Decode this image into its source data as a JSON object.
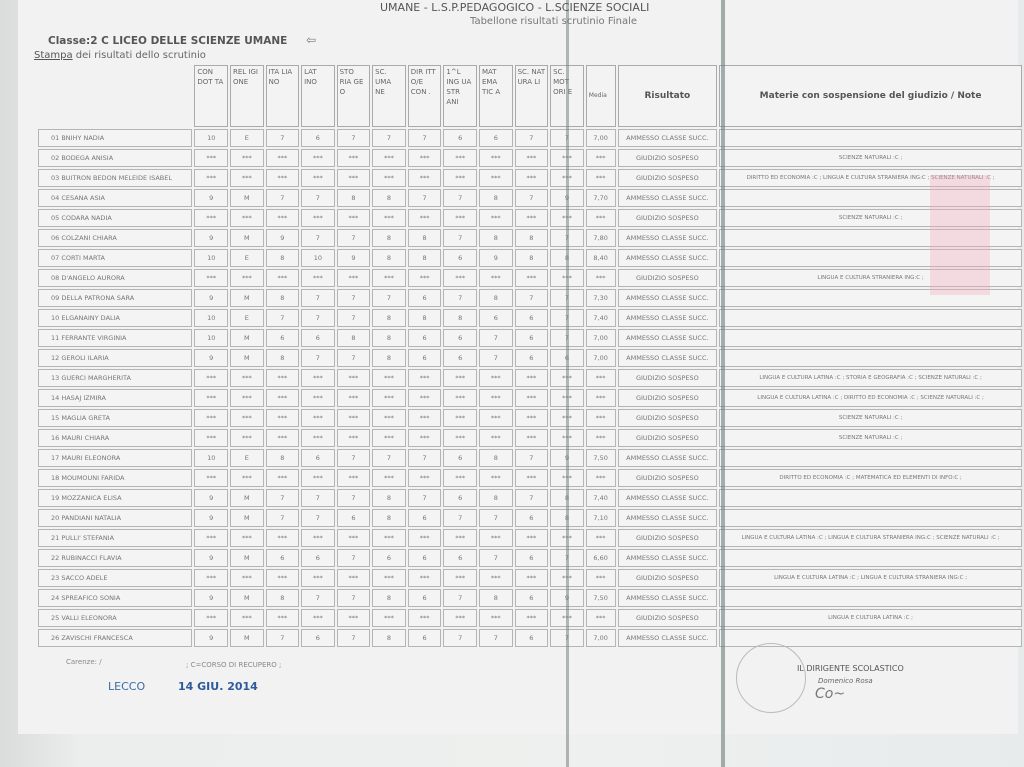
{
  "header": {
    "school_line": "UMANE - L.S.P.PEDAGOGICO - L.SCIENZE SOCIALI",
    "subtitle": "Tabellone risultati scrutinio Finale",
    "classe": "Classe:2 C LICEO DELLE SCIENZE UMANE",
    "back_icon": "⇦",
    "stampa_link": "Stampa",
    "stampa_rest": " dei risultati dello scrutinio"
  },
  "columns": [
    "CON DOT TA",
    "REL IGI ONE",
    "ITA LIA NO",
    "LAT INO",
    "STO RIA GE O",
    "SC. UMA NE",
    "DIR ITT O/E CON .",
    "1^L ING UA STR ANI",
    "MAT EMA TIC A",
    "SC. NAT URA LI",
    "SC. MOT ORI E",
    "Media",
    "Risultato",
    "Materie con sospensione del giudizio / Note"
  ],
  "students": [
    {
      "name": "01 BNIHY NADIA",
      "grades": [
        "10",
        "E",
        "7",
        "6",
        "7",
        "7",
        "7",
        "6",
        "6",
        "7",
        "7"
      ],
      "media": "7,00",
      "result": "AMMESSO CLASSE SUCC.",
      "note": ""
    },
    {
      "name": "02 BODEGA ANISIA",
      "grades": [
        "***",
        "***",
        "***",
        "***",
        "***",
        "***",
        "***",
        "***",
        "***",
        "***",
        "***"
      ],
      "media": "***",
      "result": "GIUDIZIO SOSPESO",
      "note": "SCIENZE NATURALI :C ;"
    },
    {
      "name": "03 BUITRON BEDON MELEIDE ISABEL",
      "grades": [
        "***",
        "***",
        "***",
        "***",
        "***",
        "***",
        "***",
        "***",
        "***",
        "***",
        "***"
      ],
      "media": "***",
      "result": "GIUDIZIO SOSPESO",
      "note": "DIRITTO ED ECONOMIA :C ; LINGUA E CULTURA STRANIERA ING:C ; SCIENZE NATURALI :C ;"
    },
    {
      "name": "04 CESANA ASIA",
      "grades": [
        "9",
        "M",
        "7",
        "7",
        "8",
        "8",
        "7",
        "7",
        "8",
        "7",
        "9"
      ],
      "media": "7,70",
      "result": "AMMESSO CLASSE SUCC.",
      "note": ""
    },
    {
      "name": "05 CODARA NADIA",
      "grades": [
        "***",
        "***",
        "***",
        "***",
        "***",
        "***",
        "***",
        "***",
        "***",
        "***",
        "***"
      ],
      "media": "***",
      "result": "GIUDIZIO SOSPESO",
      "note": "SCIENZE NATURALI :C ;"
    },
    {
      "name": "06 COLZANI CHIARA",
      "grades": [
        "9",
        "M",
        "9",
        "7",
        "7",
        "8",
        "8",
        "7",
        "8",
        "8",
        "7"
      ],
      "media": "7,80",
      "result": "AMMESSO CLASSE SUCC.",
      "note": ""
    },
    {
      "name": "07 CORTI MARTA",
      "grades": [
        "10",
        "E",
        "8",
        "10",
        "9",
        "8",
        "8",
        "6",
        "9",
        "8",
        "8"
      ],
      "media": "8,40",
      "result": "AMMESSO CLASSE SUCC.",
      "note": ""
    },
    {
      "name": "08 D'ANGELO AURORA",
      "grades": [
        "***",
        "***",
        "***",
        "***",
        "***",
        "***",
        "***",
        "***",
        "***",
        "***",
        "***"
      ],
      "media": "***",
      "result": "GIUDIZIO SOSPESO",
      "note": "LINGUA E CULTURA STRANIERA ING:C ;"
    },
    {
      "name": "09 DELLA PATRONA SARA",
      "grades": [
        "9",
        "M",
        "8",
        "7",
        "7",
        "7",
        "6",
        "7",
        "8",
        "7",
        "7"
      ],
      "media": "7,30",
      "result": "AMMESSO CLASSE SUCC.",
      "note": ""
    },
    {
      "name": "10 ELGANAINY DALIA",
      "grades": [
        "10",
        "E",
        "7",
        "7",
        "7",
        "8",
        "8",
        "8",
        "6",
        "6",
        "7"
      ],
      "media": "7,40",
      "result": "AMMESSO CLASSE SUCC.",
      "note": ""
    },
    {
      "name": "11 FERRANTE VIRGINIA",
      "grades": [
        "10",
        "M",
        "6",
        "6",
        "8",
        "8",
        "6",
        "6",
        "7",
        "6",
        "7"
      ],
      "media": "7,00",
      "result": "AMMESSO CLASSE SUCC.",
      "note": ""
    },
    {
      "name": "12 GEROLI ILARIA",
      "grades": [
        "9",
        "M",
        "8",
        "7",
        "7",
        "8",
        "6",
        "6",
        "7",
        "6",
        "6"
      ],
      "media": "7,00",
      "result": "AMMESSO CLASSE SUCC.",
      "note": ""
    },
    {
      "name": "13 GUERCI MARGHERITA",
      "grades": [
        "***",
        "***",
        "***",
        "***",
        "***",
        "***",
        "***",
        "***",
        "***",
        "***",
        "***"
      ],
      "media": "***",
      "result": "GIUDIZIO SOSPESO",
      "note": "LINGUA E CULTURA LATINA :C ; STORIA E GEOGRAFIA :C ; SCIENZE NATURALI :C ;"
    },
    {
      "name": "14 HASAJ IZMIRA",
      "grades": [
        "***",
        "***",
        "***",
        "***",
        "***",
        "***",
        "***",
        "***",
        "***",
        "***",
        "***"
      ],
      "media": "***",
      "result": "GIUDIZIO SOSPESO",
      "note": "LINGUA E CULTURA LATINA :C ; DIRITTO ED ECONOMIA :C ; SCIENZE NATURALI :C ;"
    },
    {
      "name": "15 MAGLIA GRETA",
      "grades": [
        "***",
        "***",
        "***",
        "***",
        "***",
        "***",
        "***",
        "***",
        "***",
        "***",
        "***"
      ],
      "media": "***",
      "result": "GIUDIZIO SOSPESO",
      "note": "SCIENZE NATURALI :C ;"
    },
    {
      "name": "16 MAURI CHIARA",
      "grades": [
        "***",
        "***",
        "***",
        "***",
        "***",
        "***",
        "***",
        "***",
        "***",
        "***",
        "***"
      ],
      "media": "***",
      "result": "GIUDIZIO SOSPESO",
      "note": "SCIENZE NATURALI :C ;"
    },
    {
      "name": "17 MAURI ELEONORA",
      "grades": [
        "10",
        "E",
        "8",
        "6",
        "7",
        "7",
        "7",
        "6",
        "8",
        "7",
        "9"
      ],
      "media": "7,50",
      "result": "AMMESSO CLASSE SUCC.",
      "note": ""
    },
    {
      "name": "18 MOUMOUNI FARIDA",
      "grades": [
        "***",
        "***",
        "***",
        "***",
        "***",
        "***",
        "***",
        "***",
        "***",
        "***",
        "***"
      ],
      "media": "***",
      "result": "GIUDIZIO SOSPESO",
      "note": "DIRITTO ED ECONOMIA :C ; MATEMATICA ED ELEMENTI DI INFO:C ;"
    },
    {
      "name": "19 MOZZANICA ELISA",
      "grades": [
        "9",
        "M",
        "7",
        "7",
        "7",
        "8",
        "7",
        "6",
        "8",
        "7",
        "8"
      ],
      "media": "7,40",
      "result": "AMMESSO CLASSE SUCC.",
      "note": ""
    },
    {
      "name": "20 PANDIANI NATALIA",
      "grades": [
        "9",
        "M",
        "7",
        "7",
        "6",
        "8",
        "6",
        "7",
        "7",
        "6",
        "8"
      ],
      "media": "7,10",
      "result": "AMMESSO CLASSE SUCC.",
      "note": ""
    },
    {
      "name": "21 PULLI' STEFANIA",
      "grades": [
        "***",
        "***",
        "***",
        "***",
        "***",
        "***",
        "***",
        "***",
        "***",
        "***",
        "***"
      ],
      "media": "***",
      "result": "GIUDIZIO SOSPESO",
      "note": "LINGUA E CULTURA LATINA :C ; LINGUA E CULTURA STRANIERA ING:C ; SCIENZE NATURALI :C ;"
    },
    {
      "name": "22 RUBINACCI FLAVIA",
      "grades": [
        "9",
        "M",
        "6",
        "6",
        "7",
        "6",
        "6",
        "6",
        "7",
        "6",
        "7"
      ],
      "media": "6,60",
      "result": "AMMESSO CLASSE SUCC.",
      "note": ""
    },
    {
      "name": "23 SACCO ADELE",
      "grades": [
        "***",
        "***",
        "***",
        "***",
        "***",
        "***",
        "***",
        "***",
        "***",
        "***",
        "***"
      ],
      "media": "***",
      "result": "GIUDIZIO SOSPESO",
      "note": "LINGUA E CULTURA LATINA :C ; LINGUA E CULTURA STRANIERA ING:C ;"
    },
    {
      "name": "24 SPREAFICO SONIA",
      "grades": [
        "9",
        "M",
        "8",
        "7",
        "7",
        "8",
        "6",
        "7",
        "8",
        "6",
        "9"
      ],
      "media": "7,50",
      "result": "AMMESSO CLASSE SUCC.",
      "note": ""
    },
    {
      "name": "25 VALLI ELEONORA",
      "grades": [
        "***",
        "***",
        "***",
        "***",
        "***",
        "***",
        "***",
        "***",
        "***",
        "***",
        "***"
      ],
      "media": "***",
      "result": "GIUDIZIO SOSPESO",
      "note": "LINGUA E CULTURA LATINA :C ;"
    },
    {
      "name": "26 ZAVISCHI FRANCESCA",
      "grades": [
        "9",
        "M",
        "7",
        "6",
        "7",
        "8",
        "6",
        "7",
        "7",
        "6",
        "7"
      ],
      "media": "7,00",
      "result": "AMMESSO CLASSE SUCC.",
      "note": ""
    }
  ],
  "footer": {
    "carenze": "Carenze: /",
    "legend": "; C=CORSO DI RECUPERO ;",
    "place_stamp": "LECCO",
    "date_stamp": "14 GIU. 2014",
    "dirigente": "IL DIRIGENTE SCOLASTICO",
    "dirigente_name": "Domenico Rosa",
    "signature": "Co~"
  },
  "colors": {
    "date_stamp": "#2d5a9c",
    "paper": "#f1f2f1"
  }
}
